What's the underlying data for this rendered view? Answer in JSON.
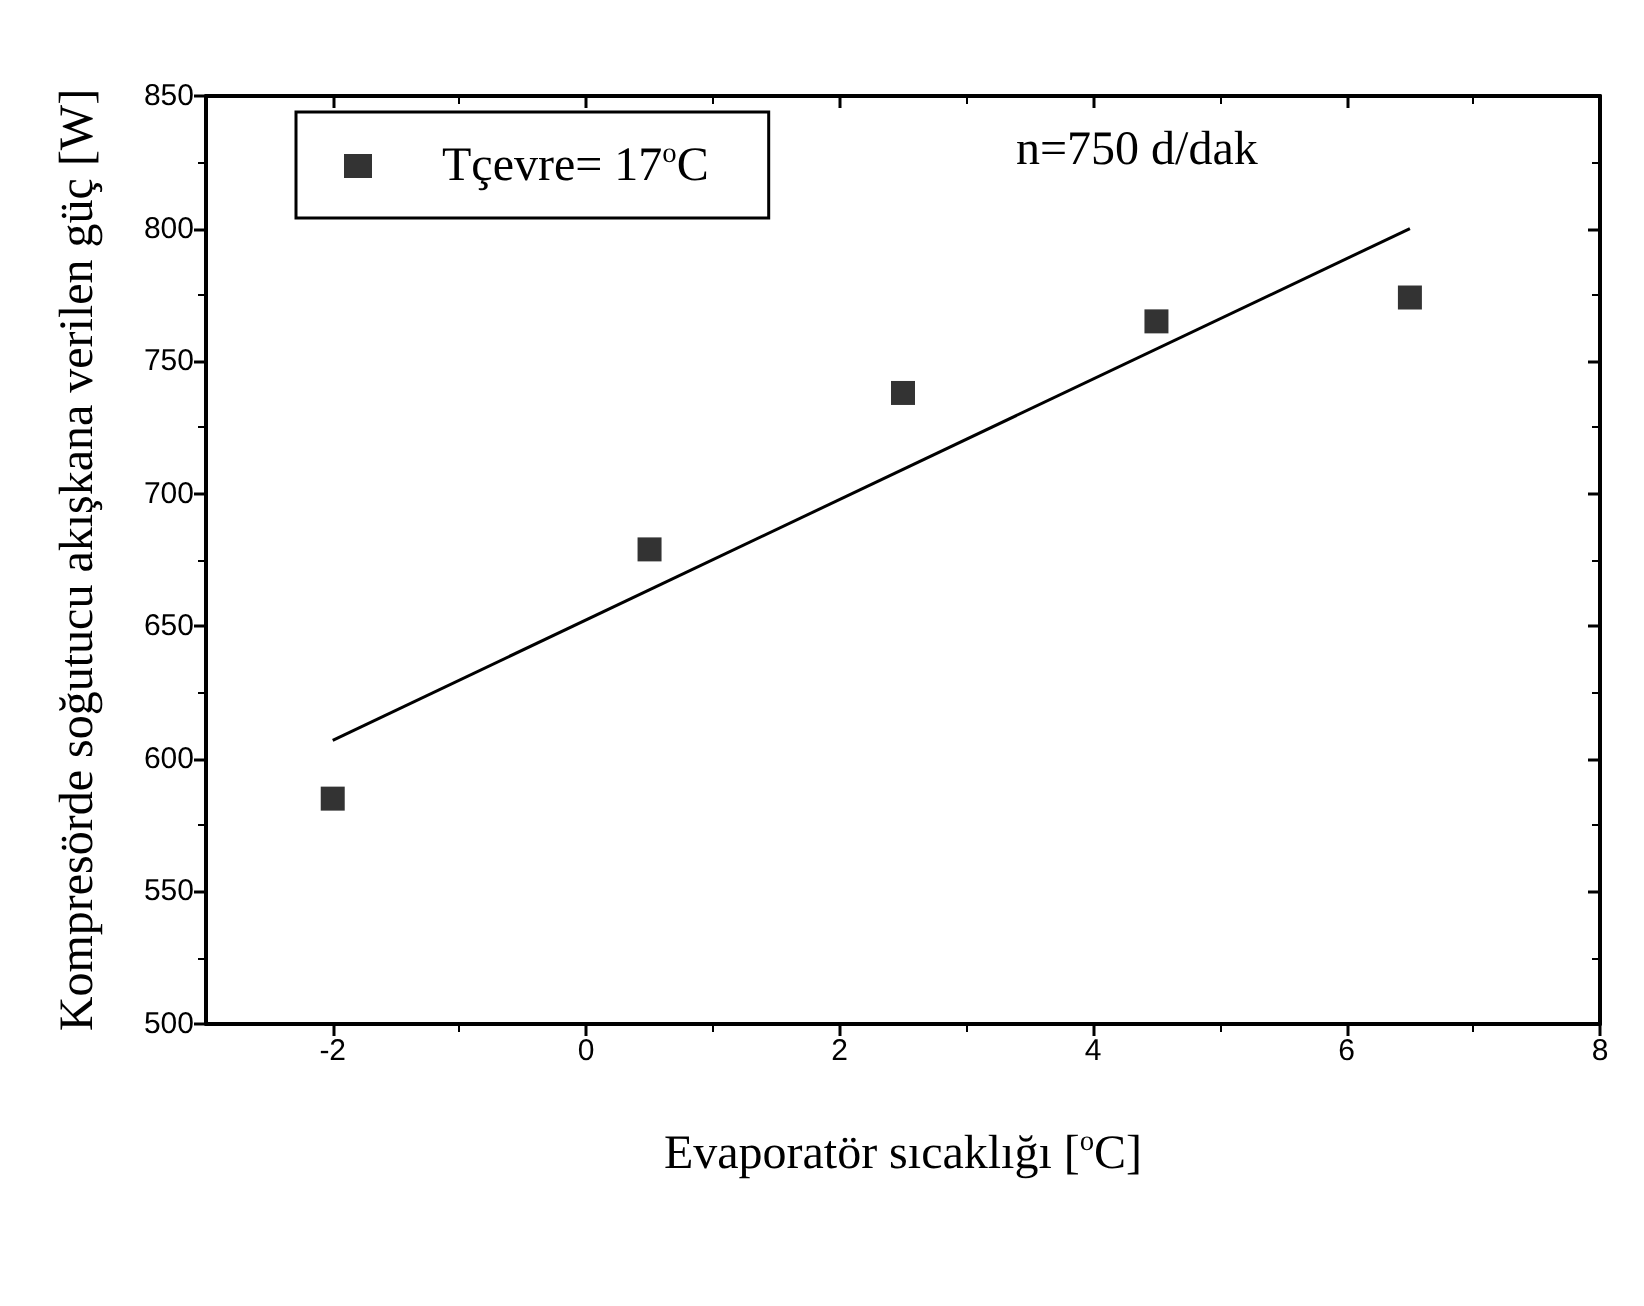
{
  "chart_data": {
    "type": "scatter",
    "xlabel": "Evaporatör sıcaklığı [$^{o}$C]",
    "ylabel": "Kompresörde soğutucu akışkana verilen güç [W]",
    "x": [
      -2,
      0.5,
      2.5,
      4.5,
      6.5
    ],
    "series": [
      {
        "name": "Tçevre= 17$^{o}$C",
        "color": "#000000",
        "values": [
          585,
          679,
          738,
          765,
          774
        ],
        "marker": "square"
      },
      {
        "type": "line",
        "color": "#000000",
        "x": [
          -2,
          6.5
        ],
        "values": [
          607,
          800
        ],
        "marker": "none",
        "line_style": "solid"
      }
    ],
    "annotations": [
      "n=750 d/dak"
    ],
    "xlim": [
      -3,
      8
    ],
    "xticks": [
      -2,
      0,
      2,
      4,
      6,
      8
    ],
    "ylim": [
      500,
      850
    ],
    "yticks": [
      500,
      550,
      600,
      650,
      700,
      750,
      800,
      850
    ],
    "legend": "top left",
    "grid": false
  }
}
